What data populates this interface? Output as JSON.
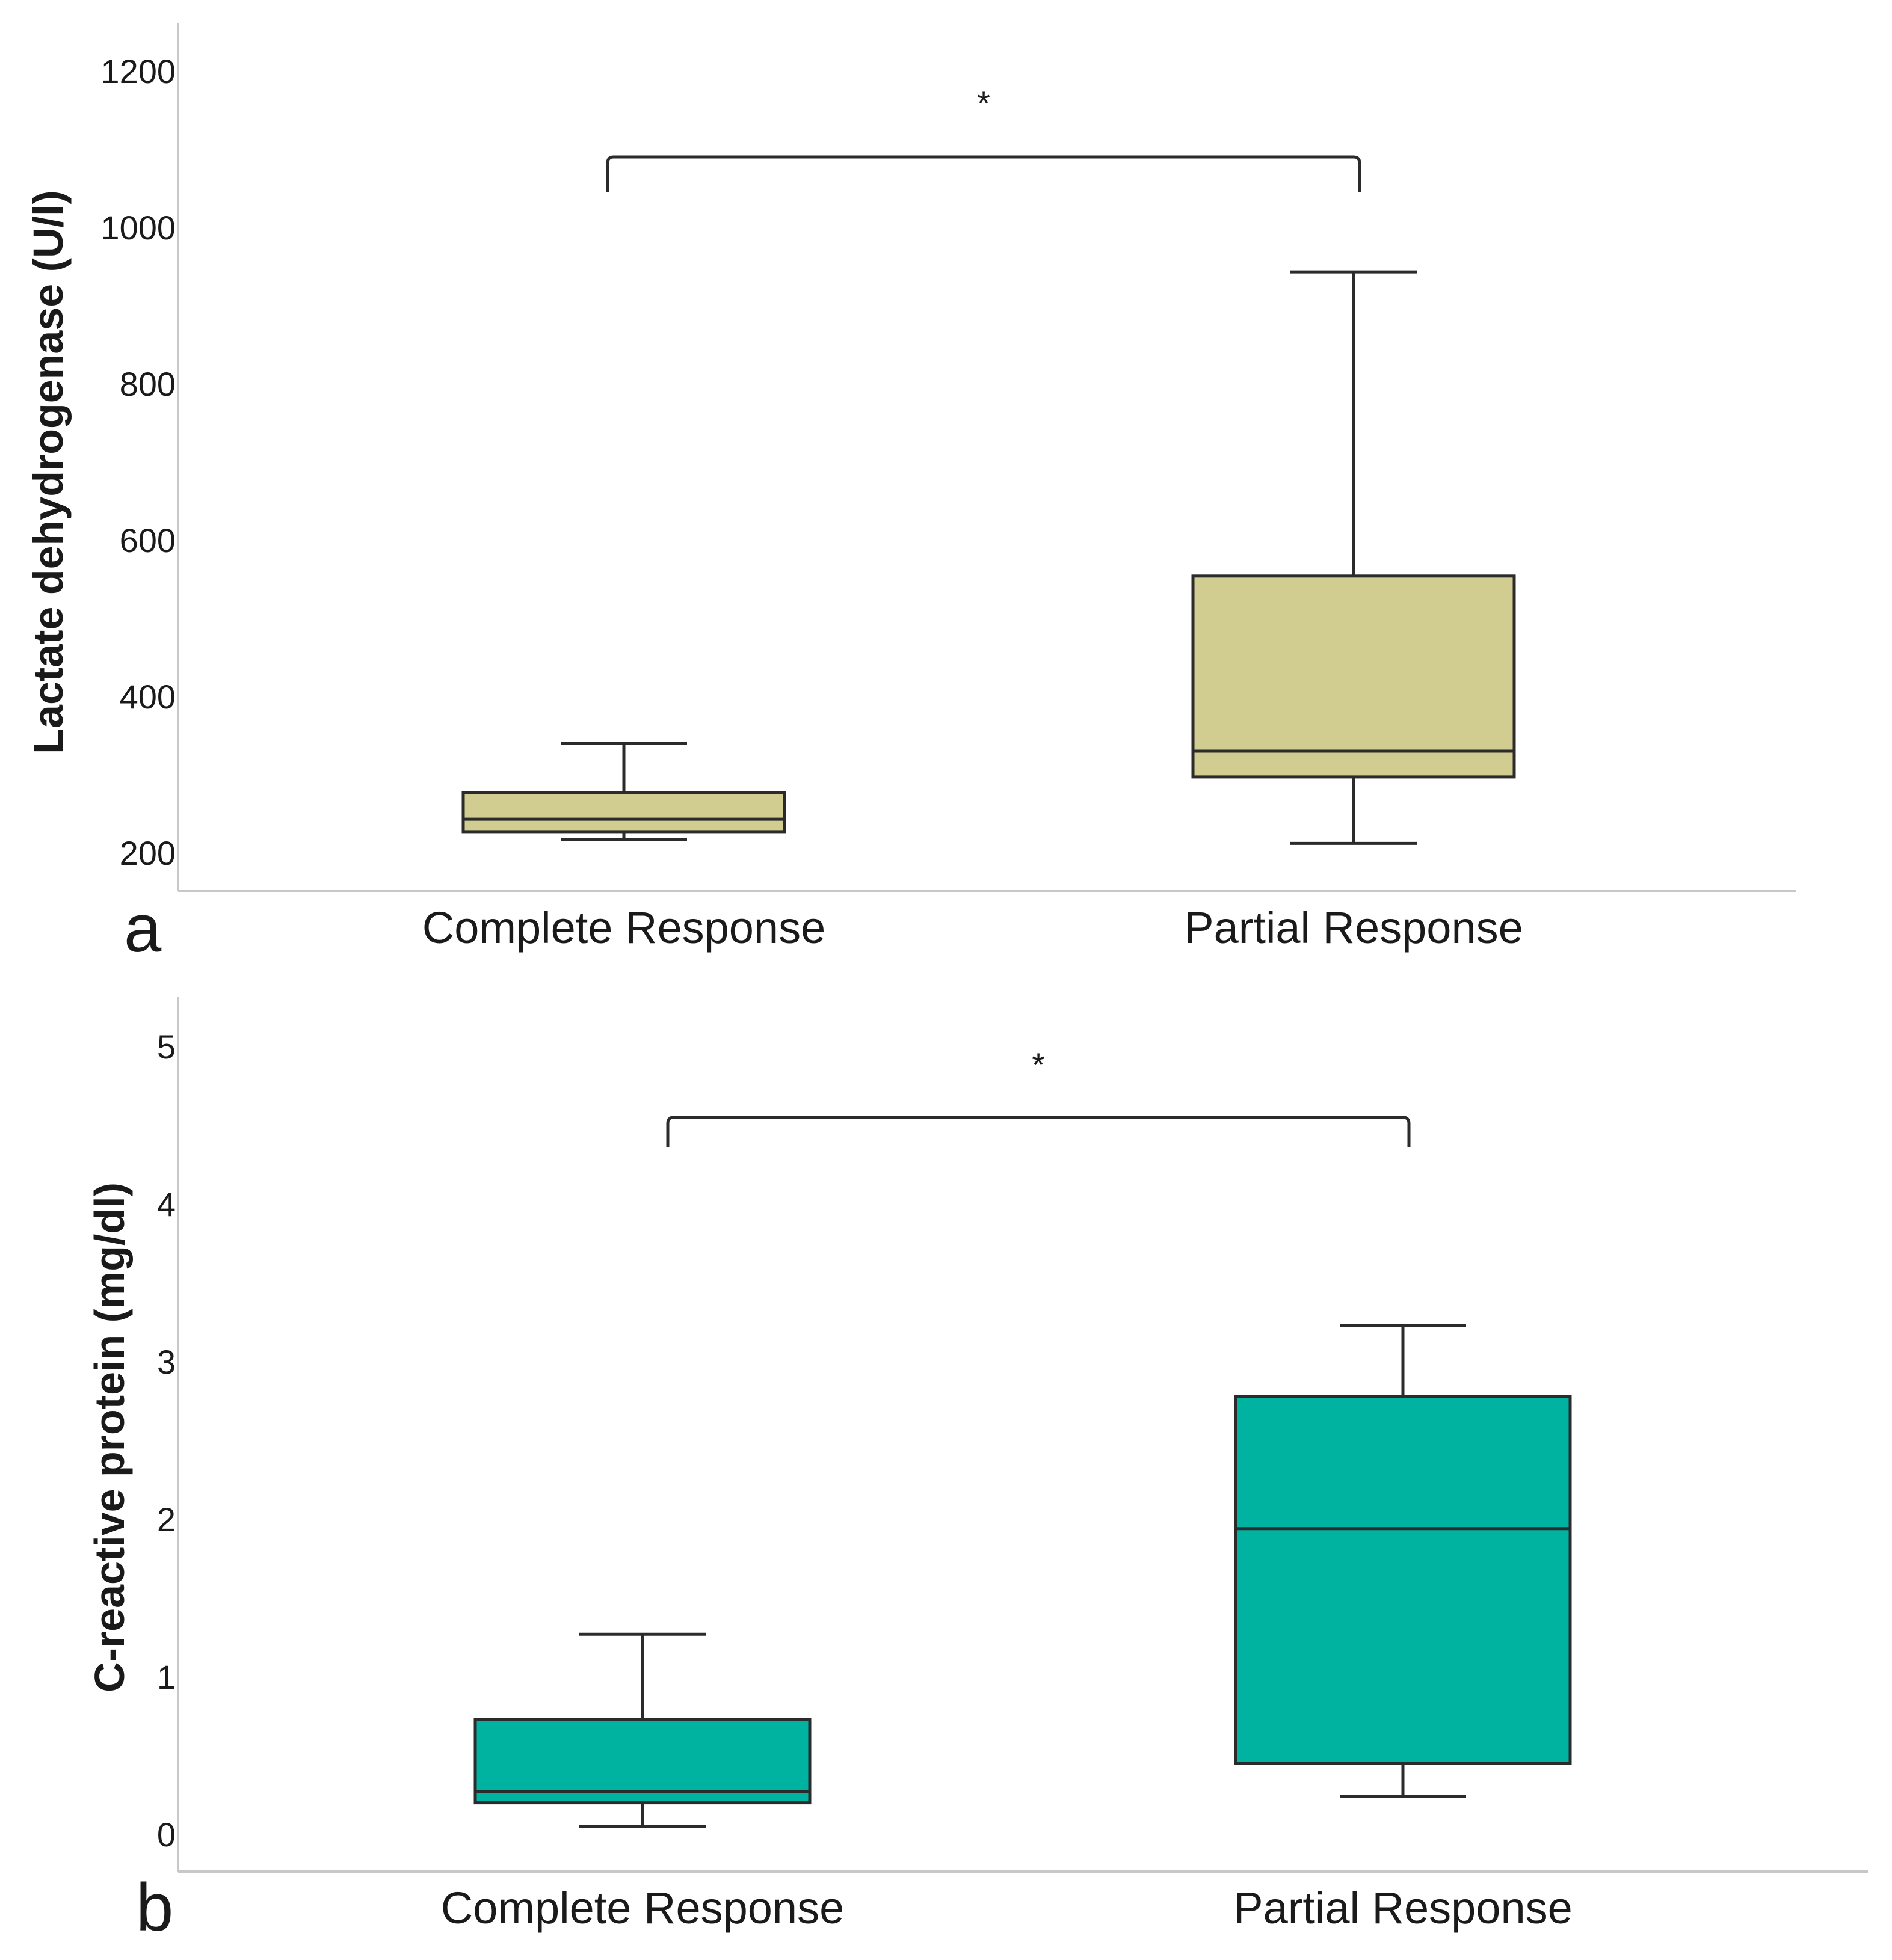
{
  "chart_data": [
    {
      "panel": "a",
      "type": "box",
      "ylabel": "Lactate dehydrogenase (U/l)",
      "xlabel": "",
      "ylim": [
        140,
        1240
      ],
      "yticks": [
        200,
        400,
        600,
        800,
        1000,
        1200
      ],
      "categories": [
        "Complete Response",
        "Partial Response"
      ],
      "fill_color": "#d1cc8f",
      "series": [
        {
          "name": "Complete Response",
          "min": 217,
          "q1": 227,
          "median": 243,
          "q3": 277,
          "max": 340
        },
        {
          "name": "Partial Response",
          "min": 212,
          "q1": 297,
          "median": 330,
          "q3": 554,
          "max": 943
        }
      ],
      "significance": {
        "label": "*",
        "between": [
          "Complete Response",
          "Partial Response"
        ],
        "level": 1090
      }
    },
    {
      "panel": "b",
      "type": "box",
      "ylabel": "C-reactive protein (mg/dl)",
      "xlabel": "",
      "ylim": [
        -0.25,
        5.3
      ],
      "yticks": [
        0,
        1,
        2,
        3,
        4,
        5
      ],
      "categories": [
        "Complete Response",
        "Partial Response"
      ],
      "fill_color": "#00b2a0",
      "series": [
        {
          "name": "Complete Response",
          "min": 0.05,
          "q1": 0.2,
          "median": 0.27,
          "q3": 0.73,
          "max": 1.27
        },
        {
          "name": "Partial Response",
          "min": 0.24,
          "q1": 0.45,
          "median": 1.94,
          "q3": 2.78,
          "max": 3.23
        }
      ],
      "significance": {
        "label": "*",
        "between": [
          "Complete Response",
          "Partial Response"
        ],
        "level": 4.55
      }
    }
  ]
}
